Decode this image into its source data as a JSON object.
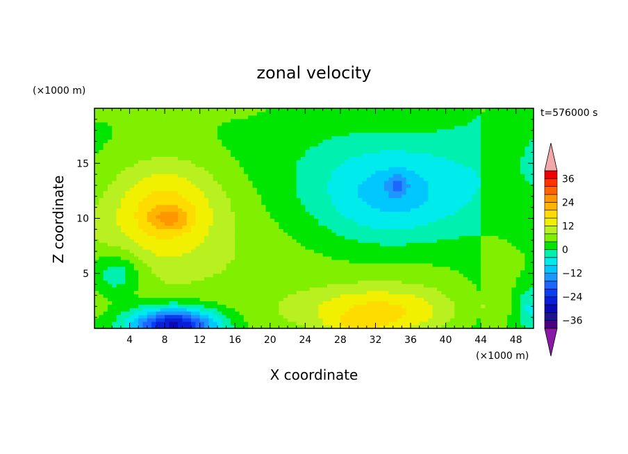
{
  "chart_data": {
    "type": "heatmap",
    "title": "zonal velocity",
    "xlabel": "X coordinate",
    "ylabel": "Z coordinate",
    "x_unit": "(×1000 m)",
    "y_unit": "(×1000 m)",
    "time_label": "t=576000 s",
    "xlim": [
      0,
      50
    ],
    "ylim": [
      0,
      20
    ],
    "x_ticks": [
      4,
      8,
      12,
      16,
      20,
      24,
      28,
      32,
      36,
      40,
      44,
      48
    ],
    "y_ticks": [
      5,
      10,
      15
    ],
    "colorbar": {
      "ticks": [
        36,
        24,
        12,
        0,
        -12,
        -24,
        -36
      ],
      "range": [
        -40,
        40
      ],
      "levels": [
        {
          "lo": -40,
          "hi": -36,
          "color": "#4b0082"
        },
        {
          "lo": -36,
          "hi": -32,
          "color": "#1c1490"
        },
        {
          "lo": -32,
          "hi": -28,
          "color": "#0a0ab4"
        },
        {
          "lo": -28,
          "hi": -24,
          "color": "#0a1ed8"
        },
        {
          "lo": -24,
          "hi": -20,
          "color": "#0a3cf0"
        },
        {
          "lo": -20,
          "hi": -16,
          "color": "#1e64ff"
        },
        {
          "lo": -16,
          "hi": -12,
          "color": "#1e96ff"
        },
        {
          "lo": -12,
          "hi": -8,
          "color": "#00c8ff"
        },
        {
          "lo": -8,
          "hi": -4,
          "color": "#00ecec"
        },
        {
          "lo": -4,
          "hi": 0,
          "color": "#00f0b0"
        },
        {
          "lo": 0,
          "hi": 4,
          "color": "#00e600"
        },
        {
          "lo": 4,
          "hi": 8,
          "color": "#80f000"
        },
        {
          "lo": 8,
          "hi": 12,
          "color": "#b8f020"
        },
        {
          "lo": 12,
          "hi": 16,
          "color": "#f0f000"
        },
        {
          "lo": 16,
          "hi": 20,
          "color": "#ffdc00"
        },
        {
          "lo": 20,
          "hi": 24,
          "color": "#ffb400"
        },
        {
          "lo": 24,
          "hi": 28,
          "color": "#ff9600"
        },
        {
          "lo": 28,
          "hi": 32,
          "color": "#ff6400"
        },
        {
          "lo": 32,
          "hi": 36,
          "color": "#ff3200"
        },
        {
          "lo": 36,
          "hi": 40,
          "color": "#f00000"
        }
      ],
      "under_color": "#8a1aa6",
      "over_color": "#f2a8a8"
    },
    "field_features": [
      {
        "x": 8,
        "z": 11,
        "sx": 6.5,
        "sz": 4.5,
        "amp": 14,
        "note": "yellow core upper left"
      },
      {
        "x": 8.5,
        "z": 10,
        "sx": 2.2,
        "sz": 1.0,
        "amp": 8,
        "note": "orange maximum"
      },
      {
        "x": 9,
        "z": 0.3,
        "sx": 5,
        "sz": 1.6,
        "amp": -34,
        "note": "blue jet near bottom left"
      },
      {
        "x": 2.5,
        "z": 5,
        "sx": 3,
        "sz": 2.0,
        "amp": -10,
        "note": "cyan patch left"
      },
      {
        "x": 34,
        "z": 12,
        "sx": 9,
        "sz": 5,
        "amp": -14,
        "note": "cyan region upper right"
      },
      {
        "x": 34.5,
        "z": 13,
        "sx": 1.2,
        "sz": 1.0,
        "amp": -8,
        "note": "blue spot"
      },
      {
        "x": 32,
        "z": 1.5,
        "sx": 9,
        "sz": 2.2,
        "amp": 12,
        "note": "yellow-green near bottom"
      },
      {
        "x": 30,
        "z": 0.3,
        "sx": 3,
        "sz": 0.8,
        "amp": 6,
        "note": "yellow at bottom"
      },
      {
        "x": 49.5,
        "z": 2,
        "sx": 1.5,
        "sz": 2.0,
        "amp": -8,
        "note": "cyan right edge"
      }
    ]
  }
}
